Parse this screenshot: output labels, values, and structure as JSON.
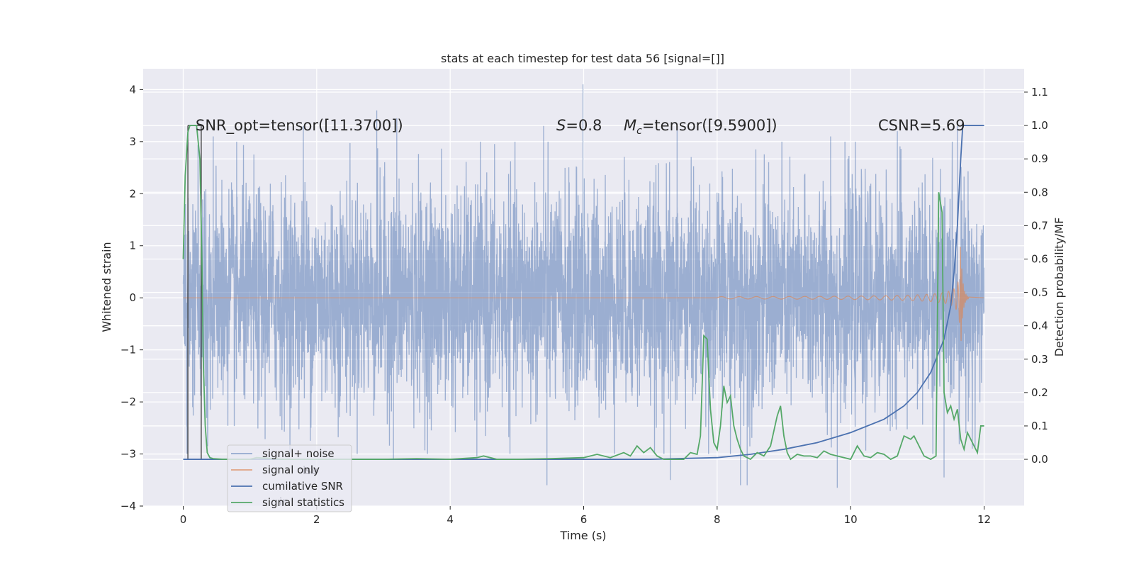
{
  "chart_data": {
    "type": "line",
    "title": "stats at each timestep for test data 56 [signal=[]]",
    "xlabel": "Time (s)",
    "ylabel": "Whitened strain",
    "ylabel_right": "Detection probability/MF",
    "xlim": [
      -0.6,
      12.6
    ],
    "ylim_left": [
      -4.0,
      4.4
    ],
    "ylim_right": [
      -0.14,
      1.17
    ],
    "x_ticks": [
      0,
      2,
      4,
      6,
      8,
      10,
      12
    ],
    "x_tick_labels": [
      "0",
      "2",
      "4",
      "6",
      "8",
      "10",
      "12"
    ],
    "y_ticks_left": [
      4,
      3,
      2,
      1,
      0,
      -1,
      -2,
      -3,
      -4
    ],
    "y_tick_labels_left": [
      "4",
      "3",
      "2",
      "1",
      "0",
      "−1",
      "−2",
      "−3",
      "−4"
    ],
    "y_ticks_right": [
      1.1,
      1.0,
      0.9,
      0.8,
      0.7,
      0.6,
      0.5,
      0.4,
      0.3,
      0.2,
      0.1,
      0.0
    ],
    "y_tick_labels_right": [
      "1.1",
      "1.0",
      "0.9",
      "0.8",
      "0.7",
      "0.6",
      "0.5",
      "0.4",
      "0.3",
      "0.2",
      "0.1",
      "0.0"
    ],
    "annotations": {
      "snr_opt": "SNR_opt=tensor([11.3700])",
      "s_label": "S",
      "s_value": "=0.8",
      "mc_label": "M",
      "mc_sub": "c",
      "mc_value": "=tensor([9.5900])",
      "csnr": "CSNR=5.69"
    },
    "window_markers": [
      0.07,
      0.27
    ],
    "series": [
      {
        "name": "signal+ noise",
        "axis": "left",
        "color": "#4c72b0",
        "alpha": 0.5,
        "description": "whitened strain noise, std ~1.0, spikes to ~4.1 near t=5.99",
        "x_range": [
          0,
          12
        ],
        "std": 1.0,
        "spikes": [
          [
            5.99,
            4.1
          ],
          [
            3.2,
            3.45
          ],
          [
            1.8,
            3.3
          ],
          [
            2.9,
            3.6
          ],
          [
            5.4,
            3.3
          ],
          [
            7.4,
            3.3
          ],
          [
            10.7,
            3.2
          ],
          [
            0.45,
            3.1
          ],
          [
            9.7,
            3.1
          ],
          [
            11.6,
            3.3
          ],
          [
            5.45,
            -3.6
          ],
          [
            7.3,
            -3.5
          ],
          [
            8.35,
            -3.6
          ],
          [
            8.45,
            -3.6
          ],
          [
            9.8,
            -3.65
          ],
          [
            11.4,
            -3.45
          ],
          [
            3.15,
            -3.1
          ],
          [
            4.4,
            -3.05
          ]
        ]
      },
      {
        "name": "signal only",
        "axis": "left",
        "color": "#dd8452",
        "description": "inspiral chirp, amplitude growing to ~1.0 at merger t~11.65",
        "chirp_start": 8.0,
        "merger_time": 11.65,
        "peak_amplitude": 1.0
      },
      {
        "name": "cumilative SNR",
        "axis": "right",
        "color": "#4c72b0",
        "x": [
          0,
          7.0,
          8.0,
          8.5,
          9.0,
          9.5,
          10.0,
          10.5,
          10.8,
          11.0,
          11.2,
          11.4,
          11.5,
          11.55,
          11.6,
          11.65,
          11.68,
          12.0
        ],
        "values": [
          0.0,
          0.0,
          0.005,
          0.015,
          0.03,
          0.05,
          0.08,
          0.12,
          0.16,
          0.2,
          0.26,
          0.36,
          0.46,
          0.56,
          0.7,
          0.9,
          1.0,
          1.0
        ]
      },
      {
        "name": "signal statistics",
        "axis": "right",
        "color": "#55a868",
        "x": [
          0,
          0.03,
          0.07,
          0.1,
          0.15,
          0.2,
          0.25,
          0.28,
          0.3,
          0.33,
          0.36,
          0.4,
          0.45,
          0.6,
          1.0,
          1.1,
          1.5,
          2.0,
          2.5,
          3.0,
          3.5,
          4.0,
          4.4,
          4.5,
          4.7,
          5.0,
          5.5,
          6.0,
          6.2,
          6.4,
          6.6,
          6.7,
          6.8,
          6.9,
          7.0,
          7.1,
          7.2,
          7.3,
          7.5,
          7.6,
          7.7,
          7.75,
          7.8,
          7.85,
          7.9,
          7.95,
          8.0,
          8.05,
          8.1,
          8.15,
          8.2,
          8.25,
          8.3,
          8.35,
          8.4,
          8.5,
          8.6,
          8.7,
          8.8,
          8.9,
          8.95,
          9.0,
          9.05,
          9.1,
          9.2,
          9.3,
          9.4,
          9.5,
          9.6,
          9.7,
          9.8,
          10.0,
          10.1,
          10.2,
          10.3,
          10.4,
          10.5,
          10.6,
          10.7,
          10.8,
          10.9,
          10.95,
          11.0,
          11.1,
          11.2,
          11.28,
          11.32,
          11.37,
          11.4,
          11.45,
          11.5,
          11.55,
          11.6,
          11.65,
          11.7,
          11.75,
          11.8,
          11.85,
          11.9,
          11.95,
          12.0
        ],
        "values": [
          0.6,
          0.85,
          0.98,
          1.0,
          1.0,
          1.0,
          0.9,
          0.6,
          0.3,
          0.1,
          0.02,
          0.005,
          0.002,
          0.0,
          0.0,
          0.005,
          0.0,
          0.0,
          0.0,
          0.0,
          0.002,
          0.0,
          0.005,
          0.01,
          0.0,
          0.0,
          0.002,
          0.005,
          0.015,
          0.005,
          0.02,
          0.01,
          0.04,
          0.02,
          0.035,
          0.01,
          0.0,
          0.0,
          0.0,
          0.02,
          0.015,
          0.07,
          0.37,
          0.36,
          0.15,
          0.05,
          0.03,
          0.1,
          0.22,
          0.17,
          0.19,
          0.1,
          0.06,
          0.03,
          0.01,
          0.0,
          0.02,
          0.01,
          0.04,
          0.13,
          0.16,
          0.07,
          0.02,
          0.0,
          0.015,
          0.01,
          0.01,
          0.005,
          0.025,
          0.015,
          0.01,
          0.0,
          0.04,
          0.01,
          0.005,
          0.02,
          0.015,
          0.0,
          0.01,
          0.07,
          0.06,
          0.07,
          0.05,
          0.01,
          0.0,
          0.01,
          0.8,
          0.74,
          0.2,
          0.14,
          0.16,
          0.12,
          0.15,
          0.06,
          0.03,
          0.08,
          0.06,
          0.04,
          0.02,
          0.1,
          0.1
        ]
      }
    ],
    "legend_position": "lower-left",
    "grid": true
  },
  "legend": {
    "items": [
      {
        "label": "signal+ noise",
        "color": "#4c72b0",
        "alpha": 0.55
      },
      {
        "label": "signal only",
        "color": "#dd8452",
        "alpha": 0.7
      },
      {
        "label": "cumilative SNR",
        "color": "#4c72b0",
        "alpha": 1.0
      },
      {
        "label": "signal statistics",
        "color": "#55a868",
        "alpha": 1.0
      }
    ],
    "ghost_labels": [
      "ise",
      "ir"
    ]
  }
}
